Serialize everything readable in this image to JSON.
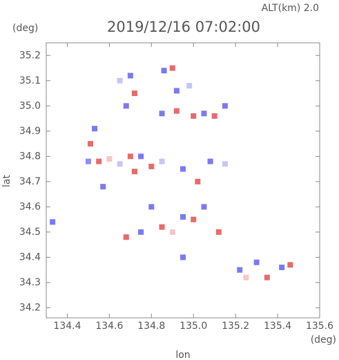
{
  "chart_data": {
    "type": "scatter",
    "title": "2019/12/16 07:02:00",
    "subtitle": "ALT(km) 2.0",
    "x_label": "lon",
    "y_label": "lat",
    "x_unit": "(deg)",
    "y_unit": "(deg)",
    "xlim": [
      134.3,
      135.6
    ],
    "ylim": [
      34.16,
      35.25
    ],
    "xticks": [
      134.4,
      134.6,
      134.8,
      {
        "value": 135,
        "label": "135.0"
      },
      135.2,
      135.4,
      135.6
    ],
    "yticks": [
      34.2,
      34.3,
      34.4,
      34.5,
      34.6,
      34.7,
      34.8,
      34.9,
      {
        "value": 35,
        "label": "35.0"
      },
      35.1,
      35.2
    ],
    "x": [
      134.33,
      134.51,
      134.53,
      134.5,
      134.55,
      134.6,
      134.65,
      134.7,
      134.75,
      134.8,
      134.85,
      134.72,
      134.57,
      134.7,
      134.65,
      134.72,
      134.68,
      134.9,
      134.86,
      134.92,
      134.98,
      134.85,
      134.92,
      135.0,
      135.05,
      135.1,
      135.15,
      134.95,
      135.02,
      135.08,
      135.15,
      134.8,
      134.85,
      134.9,
      134.95,
      135.0,
      135.05,
      135.12,
      134.75,
      134.68,
      134.95,
      135.25,
      135.3,
      135.35,
      135.42,
      135.46,
      135.22
    ],
    "y": [
      34.54,
      34.85,
      34.91,
      34.78,
      34.78,
      34.79,
      34.77,
      34.8,
      34.8,
      34.76,
      34.78,
      34.74,
      34.68,
      35.12,
      35.1,
      35.05,
      35.0,
      35.15,
      35.14,
      35.06,
      35.08,
      34.97,
      34.98,
      34.96,
      34.97,
      34.96,
      35.0,
      34.75,
      34.7,
      34.78,
      34.77,
      34.6,
      34.52,
      34.5,
      34.56,
      34.55,
      34.6,
      34.5,
      34.5,
      34.48,
      34.4,
      34.32,
      34.38,
      34.32,
      34.36,
      34.37,
      34.35
    ],
    "colors": [
      "#7a7af0",
      "#e86a6a",
      "#7a7af0",
      "#8c8cf2",
      "#e86a6a",
      "#f6c6c6",
      "#c6c6f6",
      "#e86a6a",
      "#7a7af0",
      "#e86a6a",
      "#c6c6f6",
      "#e86a6a",
      "#7a7af0",
      "#7a7af0",
      "#c6c6f6",
      "#e86a6a",
      "#7a7af0",
      "#e86a6a",
      "#7a7af0",
      "#7a7af0",
      "#c6c6f6",
      "#7a7af0",
      "#e86a6a",
      "#e86a6a",
      "#7a7af0",
      "#e86a6a",
      "#7a7af0",
      "#7a7af0",
      "#e86a6a",
      "#7a7af0",
      "#c6c6f6",
      "#7a7af0",
      "#e86a6a",
      "#f6c6c6",
      "#7a7af0",
      "#e86a6a",
      "#7a7af0",
      "#e86a6a",
      "#7a7af0",
      "#e86a6a",
      "#7a7af0",
      "#f6c6c6",
      "#7a7af0",
      "#e86a6a",
      "#7a7af0",
      "#e86a6a",
      "#7a7af0"
    ]
  }
}
